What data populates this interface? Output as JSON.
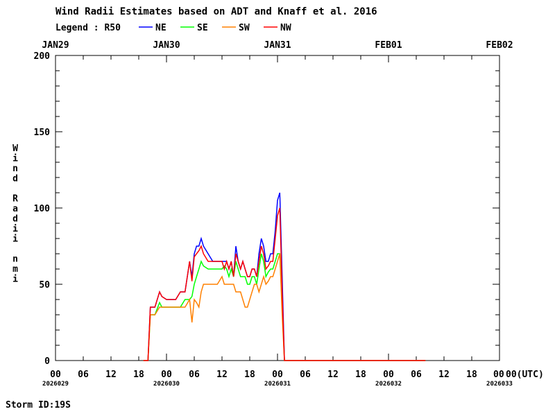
{
  "chart_data": {
    "type": "line",
    "title": "Wind Radii Estimates based on ADT and Knaff et al. 2016",
    "legend_label": "Legend : R50",
    "legend_placement": "top-left",
    "ylabel": "Wind Radii nmi",
    "xlabel_unit": "00(UTC)",
    "ylim": [
      0,
      200
    ],
    "yticks": [
      0,
      50,
      100,
      150,
      200
    ],
    "x_range_hours": [
      0,
      96
    ],
    "x_hour_ticks": [
      "00",
      "06",
      "12",
      "18",
      "00",
      "06",
      "12",
      "18",
      "00",
      "06",
      "12",
      "18",
      "00",
      "06",
      "12",
      "18",
      "00"
    ],
    "x_date_ticks": [
      "2026029",
      "",
      "",
      "",
      "2026030",
      "",
      "",
      "",
      "2026031",
      "",
      "",
      "",
      "2026032",
      "",
      "",
      "",
      "2026033"
    ],
    "top_dates": [
      "JAN29",
      "JAN30",
      "JAN31",
      "FEB01",
      "FEB02"
    ],
    "grid": false,
    "series": [
      {
        "name": "NE",
        "color": "#0000ff",
        "x": [
          19.0,
          20.0,
          20.5,
          21.5,
          22.5,
          23.0,
          24.0,
          25.0,
          26.0,
          27.0,
          28.0,
          29.0,
          29.5,
          30.0,
          30.5,
          31.0,
          31.5,
          32.0,
          33.0,
          34.0,
          35.0,
          36.0,
          36.5,
          37.0,
          37.5,
          38.0,
          38.5,
          39.0,
          39.5,
          40.0,
          40.5,
          41.0,
          41.5,
          42.0,
          42.5,
          43.0,
          43.5,
          44.0,
          44.5,
          45.0,
          45.5,
          46.0,
          46.5,
          47.0,
          47.5,
          48.0,
          48.5,
          49.0,
          49.5,
          50.0,
          50.3,
          50.6,
          51.0,
          52.0,
          60.0,
          72.0,
          80.0
        ],
        "values": [
          0,
          0,
          35,
          35,
          45,
          42,
          40,
          40,
          40,
          45,
          45,
          65,
          55,
          70,
          75,
          75,
          80,
          75,
          70,
          65,
          65,
          65,
          65,
          65,
          60,
          65,
          55,
          75,
          65,
          60,
          65,
          60,
          55,
          55,
          60,
          60,
          55,
          70,
          80,
          75,
          65,
          65,
          70,
          70,
          85,
          105,
          110,
          55,
          0,
          0,
          0,
          0,
          0,
          0,
          0,
          0,
          0
        ]
      },
      {
        "name": "SE",
        "color": "#00ff00",
        "x": [
          19.0,
          20.0,
          20.5,
          21.5,
          22.5,
          23.0,
          24.0,
          25.0,
          26.0,
          27.0,
          28.0,
          29.0,
          29.5,
          30.0,
          30.5,
          31.0,
          31.5,
          32.0,
          33.0,
          34.0,
          35.0,
          36.0,
          36.5,
          37.0,
          37.5,
          38.0,
          38.5,
          39.0,
          39.5,
          40.0,
          40.5,
          41.0,
          41.5,
          42.0,
          42.5,
          43.0,
          43.5,
          44.0,
          44.5,
          45.0,
          45.5,
          46.0,
          46.5,
          47.0,
          47.5,
          48.0,
          48.5,
          49.0,
          49.5,
          50.0,
          50.3,
          50.6,
          51.0,
          52.0,
          60.0,
          72.0,
          80.0
        ],
        "values": [
          0,
          0,
          30,
          30,
          38,
          35,
          35,
          35,
          35,
          35,
          40,
          40,
          42,
          50,
          55,
          60,
          65,
          62,
          60,
          60,
          60,
          60,
          62,
          60,
          55,
          60,
          55,
          65,
          60,
          55,
          55,
          55,
          50,
          50,
          55,
          55,
          50,
          60,
          70,
          65,
          55,
          58,
          60,
          60,
          65,
          70,
          70,
          35,
          0,
          0,
          0,
          0,
          0,
          0,
          0,
          0,
          0
        ]
      },
      {
        "name": "SW",
        "color": "#ff8000",
        "x": [
          19.0,
          20.0,
          20.5,
          21.5,
          22.5,
          23.0,
          24.0,
          25.0,
          26.0,
          27.0,
          28.0,
          29.0,
          29.5,
          30.0,
          30.5,
          31.0,
          31.5,
          32.0,
          33.0,
          34.0,
          35.0,
          36.0,
          36.5,
          37.0,
          37.5,
          38.0,
          38.5,
          39.0,
          39.5,
          40.0,
          40.5,
          41.0,
          41.5,
          42.0,
          42.5,
          43.0,
          43.5,
          44.0,
          44.5,
          45.0,
          45.5,
          46.0,
          46.5,
          47.0,
          47.5,
          48.0,
          48.5,
          49.0,
          49.5,
          50.0,
          50.3,
          50.6,
          51.0,
          52.0,
          60.0,
          72.0,
          80.0
        ],
        "values": [
          0,
          0,
          30,
          30,
          35,
          35,
          35,
          35,
          35,
          35,
          35,
          40,
          25,
          40,
          38,
          35,
          45,
          50,
          50,
          50,
          50,
          55,
          50,
          50,
          50,
          50,
          50,
          45,
          45,
          45,
          40,
          35,
          35,
          40,
          45,
          50,
          50,
          45,
          50,
          55,
          50,
          52,
          55,
          55,
          60,
          65,
          70,
          30,
          0,
          0,
          0,
          0,
          0,
          0,
          0,
          0,
          0
        ]
      },
      {
        "name": "NW",
        "color": "#ff0000",
        "x": [
          19.0,
          20.0,
          20.5,
          21.5,
          22.5,
          23.0,
          24.0,
          25.0,
          26.0,
          27.0,
          28.0,
          29.0,
          29.5,
          30.0,
          30.5,
          31.0,
          31.5,
          32.0,
          33.0,
          34.0,
          35.0,
          36.0,
          36.5,
          37.0,
          37.5,
          38.0,
          38.5,
          39.0,
          39.5,
          40.0,
          40.5,
          41.0,
          41.5,
          42.0,
          42.5,
          43.0,
          43.5,
          44.0,
          44.5,
          45.0,
          45.5,
          46.0,
          46.5,
          47.0,
          47.5,
          48.0,
          48.5,
          49.0,
          49.5,
          50.0,
          50.3,
          50.6,
          51.0,
          52.0,
          60.0,
          72.0,
          80.0
        ],
        "values": [
          0,
          0,
          35,
          35,
          45,
          42,
          40,
          40,
          40,
          45,
          45,
          65,
          52,
          68,
          70,
          72,
          75,
          70,
          65,
          65,
          65,
          65,
          60,
          65,
          60,
          65,
          55,
          70,
          65,
          60,
          65,
          60,
          55,
          55,
          60,
          60,
          55,
          65,
          75,
          70,
          60,
          62,
          65,
          65,
          80,
          95,
          100,
          45,
          0,
          0,
          0,
          0,
          0,
          0,
          0,
          0,
          0
        ]
      }
    ]
  },
  "footer": {
    "storm_id": "Storm ID:19S"
  }
}
